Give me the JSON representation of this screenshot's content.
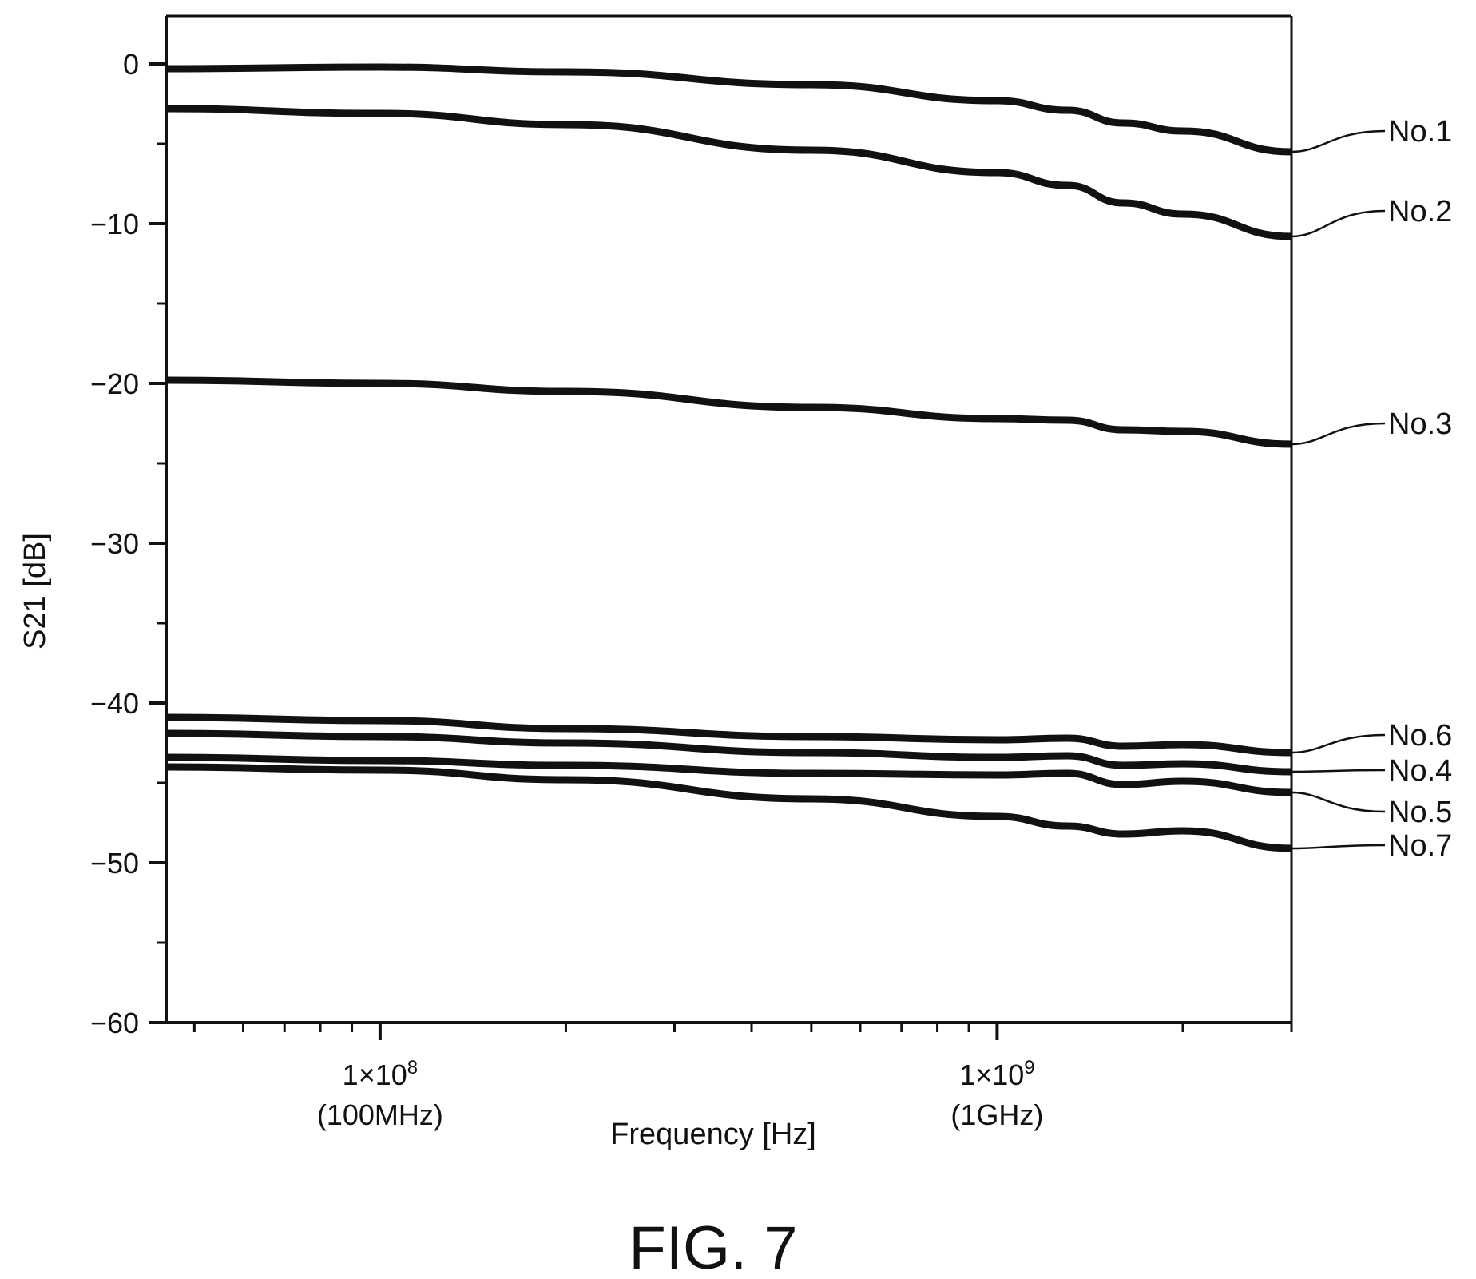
{
  "chart_data": {
    "type": "line",
    "figure_label": "FIG. 7",
    "xlabel": "Frequency [Hz]",
    "ylabel": "S21 [dB]",
    "xscale": "log",
    "xlim": [
      45000000,
      3000000000
    ],
    "ylim": [
      -60,
      3
    ],
    "grid": false,
    "legend": "none",
    "yticks": [
      {
        "value": 0,
        "label": "0"
      },
      {
        "value": -10,
        "label": "−10"
      },
      {
        "value": -20,
        "label": "−20"
      },
      {
        "value": -30,
        "label": "−30"
      },
      {
        "value": -40,
        "label": "−40"
      },
      {
        "value": -50,
        "label": "−50"
      },
      {
        "value": -60,
        "label": "−60"
      }
    ],
    "yminor": [
      -5,
      -15,
      -25,
      -35,
      -45,
      -55
    ],
    "xticks": [
      {
        "value": 100000000,
        "label": "1×10",
        "exp": "8",
        "sublabel": "(100MHz)"
      },
      {
        "value": 1000000000,
        "label": "1×10",
        "exp": "9",
        "sublabel": "(1GHz)"
      }
    ],
    "xminor": [
      50000000,
      60000000,
      70000000,
      80000000,
      90000000,
      200000000,
      300000000,
      400000000,
      500000000,
      600000000,
      700000000,
      800000000,
      900000000,
      2000000000,
      3000000000
    ],
    "series": [
      {
        "name": "No.1",
        "x": [
          45000000,
          100000000,
          200000000,
          500000000,
          1000000000,
          1300000000,
          1600000000,
          2000000000,
          3000000000
        ],
        "y": [
          -0.3,
          -0.2,
          -0.5,
          -1.3,
          -2.3,
          -2.9,
          -3.7,
          -4.2,
          -5.5
        ]
      },
      {
        "name": "No.2",
        "x": [
          45000000,
          100000000,
          200000000,
          500000000,
          1000000000,
          1300000000,
          1600000000,
          2000000000,
          3000000000
        ],
        "y": [
          -2.8,
          -3.1,
          -3.8,
          -5.4,
          -6.8,
          -7.6,
          -8.7,
          -9.4,
          -10.8
        ]
      },
      {
        "name": "No.3",
        "x": [
          45000000,
          100000000,
          200000000,
          500000000,
          1000000000,
          1300000000,
          1600000000,
          2000000000,
          3000000000
        ],
        "y": [
          -19.8,
          -20.0,
          -20.5,
          -21.5,
          -22.2,
          -22.3,
          -22.9,
          -23.0,
          -23.8
        ]
      },
      {
        "name": "No.6",
        "x": [
          45000000,
          100000000,
          200000000,
          500000000,
          1000000000,
          1300000000,
          1600000000,
          2000000000,
          3000000000
        ],
        "y": [
          -40.9,
          -41.1,
          -41.6,
          -42.1,
          -42.3,
          -42.2,
          -42.7,
          -42.6,
          -43.1
        ]
      },
      {
        "name": "No.4",
        "x": [
          45000000,
          100000000,
          200000000,
          500000000,
          1000000000,
          1300000000,
          1600000000,
          2000000000,
          3000000000
        ],
        "y": [
          -41.9,
          -42.1,
          -42.5,
          -43.1,
          -43.4,
          -43.3,
          -43.9,
          -43.8,
          -44.3
        ]
      },
      {
        "name": "No.5",
        "x": [
          45000000,
          100000000,
          200000000,
          500000000,
          1000000000,
          1300000000,
          1600000000,
          2000000000,
          3000000000
        ],
        "y": [
          -43.4,
          -43.6,
          -43.9,
          -44.4,
          -44.5,
          -44.4,
          -45.1,
          -44.9,
          -45.6
        ]
      },
      {
        "name": "No.7",
        "x": [
          45000000,
          100000000,
          200000000,
          500000000,
          1000000000,
          1300000000,
          1600000000,
          2000000000,
          3000000000
        ],
        "y": [
          -44.0,
          -44.2,
          -44.8,
          -46.0,
          -47.1,
          -47.7,
          -48.2,
          -48.0,
          -49.1
        ]
      }
    ],
    "label_positions": [
      {
        "name": "No.1",
        "y_label": -4.2
      },
      {
        "name": "No.2",
        "y_label": -9.2
      },
      {
        "name": "No.3",
        "y_label": -22.5
      },
      {
        "name": "No.6",
        "y_label": -42.0
      },
      {
        "name": "No.4",
        "y_label": -44.2
      },
      {
        "name": "No.5",
        "y_label": -46.8
      },
      {
        "name": "No.7",
        "y_label": -48.9
      }
    ]
  }
}
